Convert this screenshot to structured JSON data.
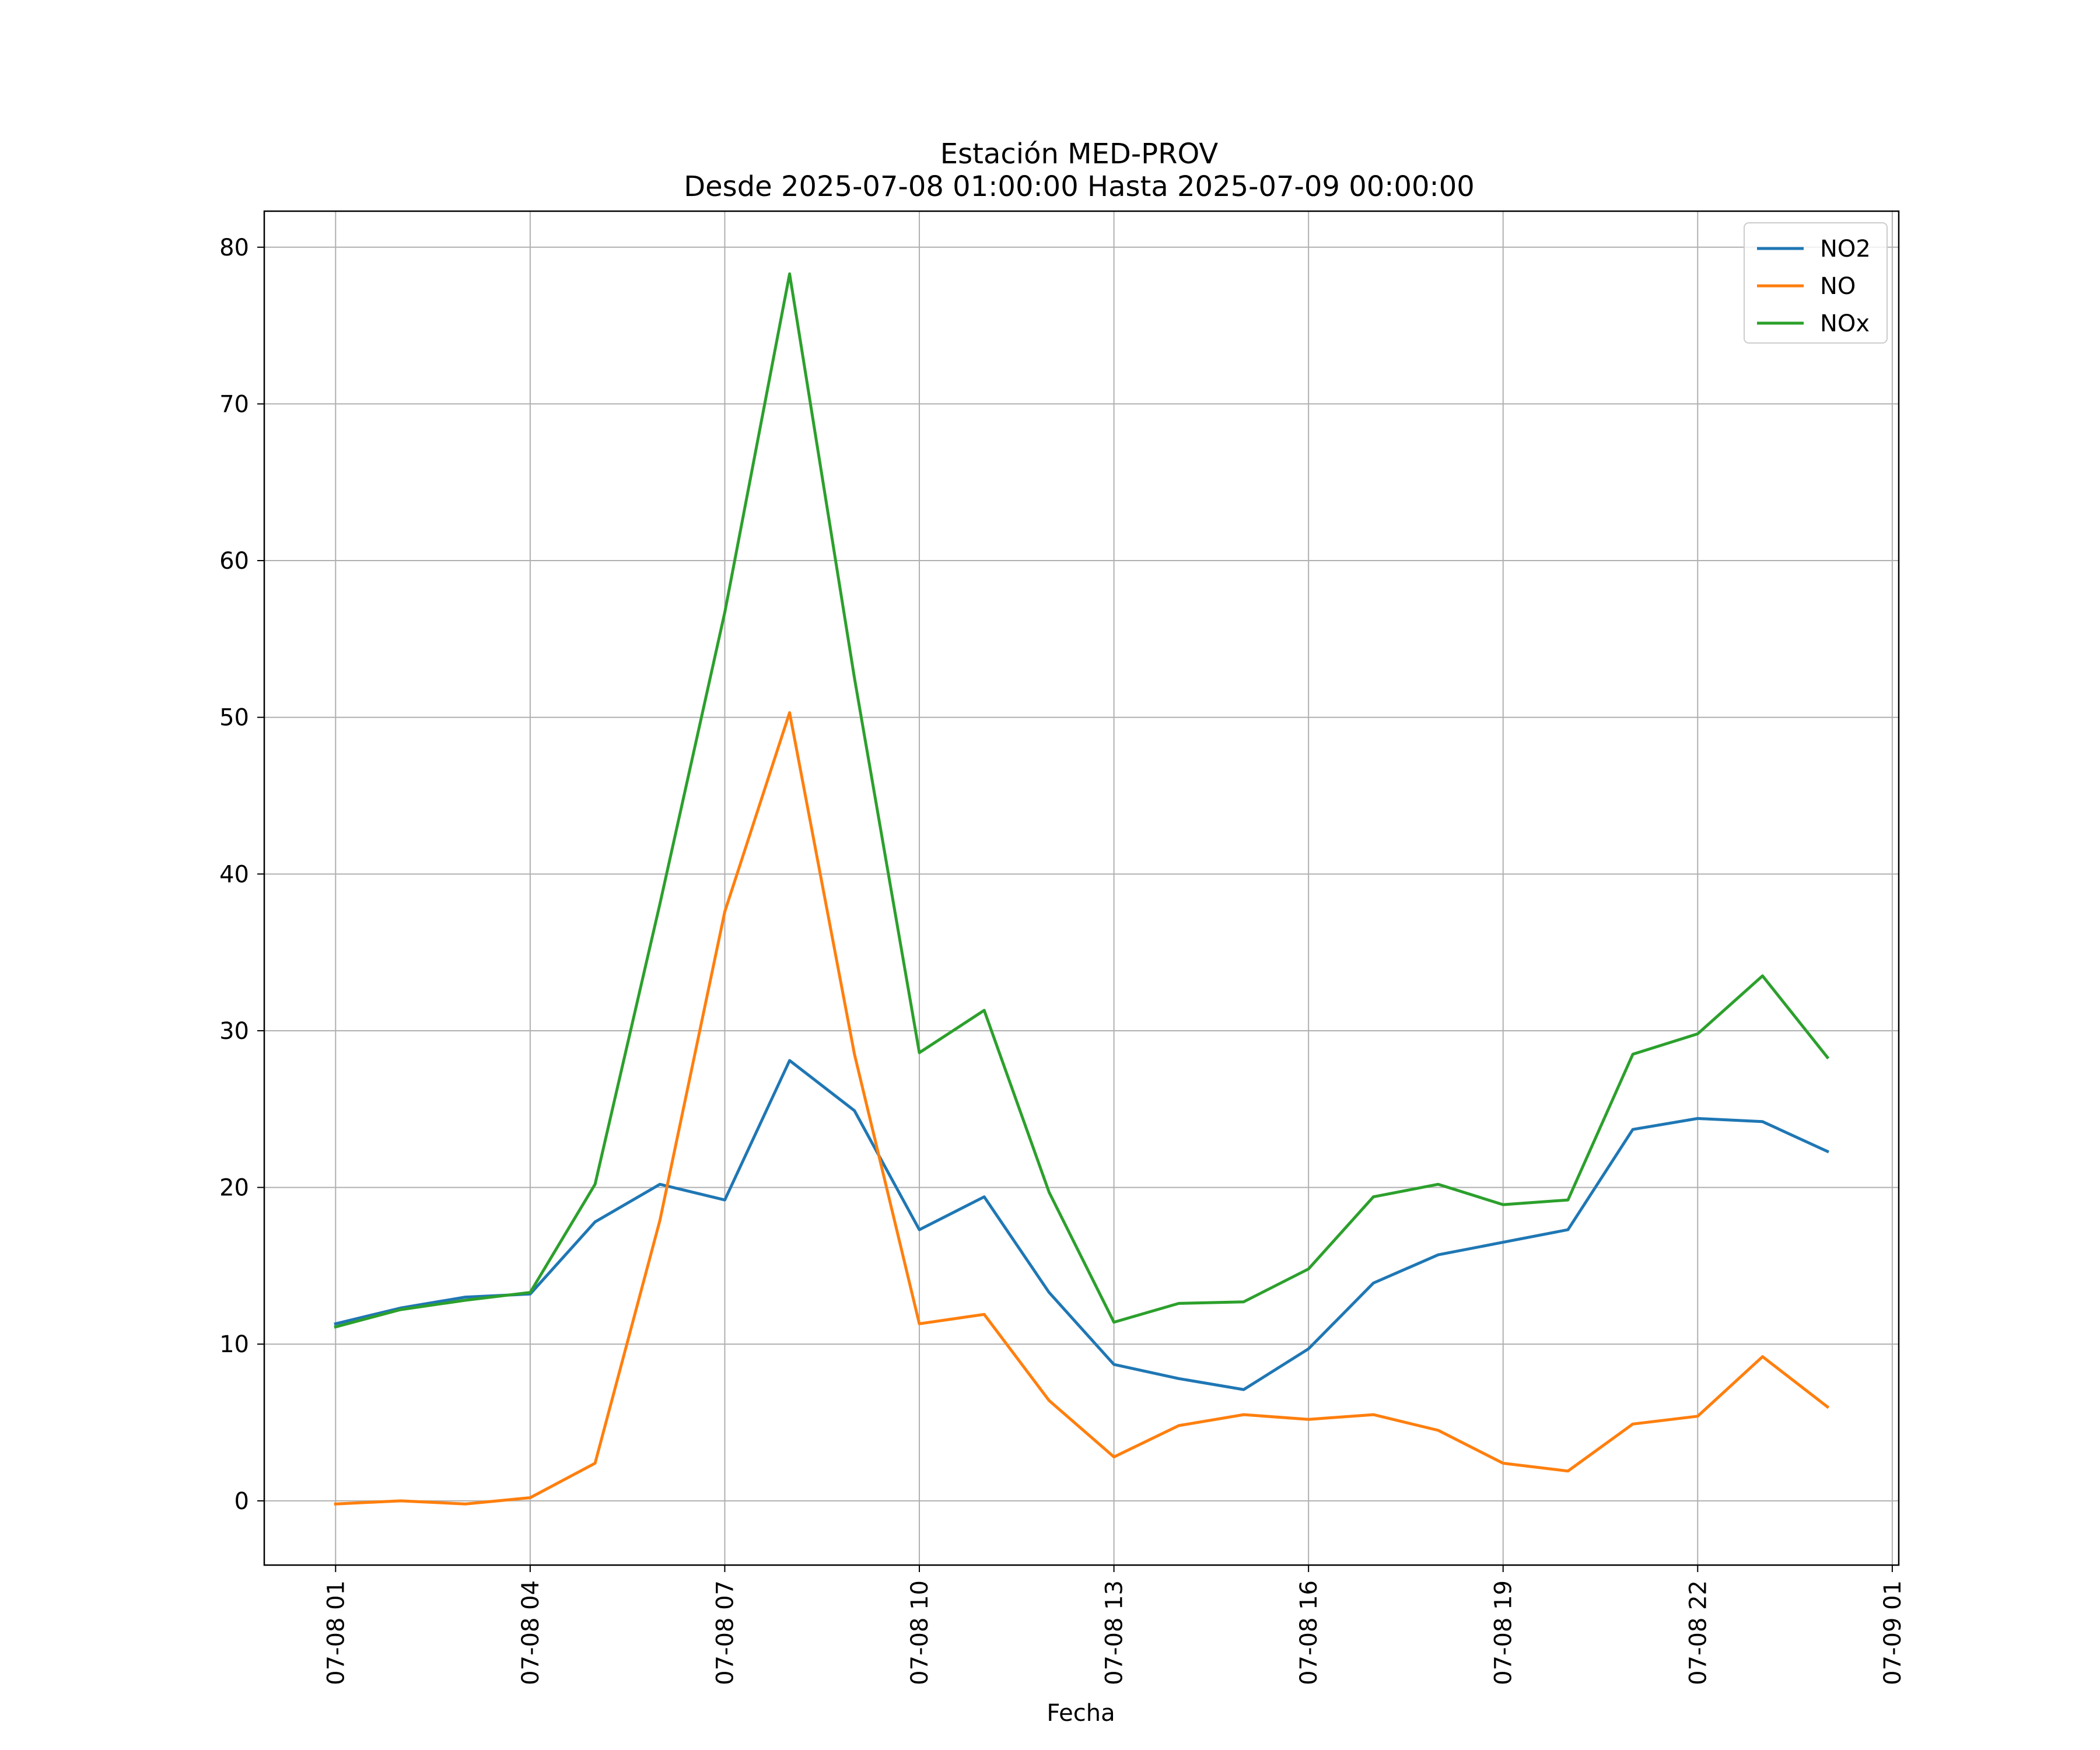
{
  "chart_data": {
    "type": "line",
    "title_line1": "Estación MED-PROV",
    "title_line2": "Desde 2025-07-08 01:00:00 Hasta 2025-07-09 00:00:00",
    "xlabel": "Fecha",
    "ylabel": "",
    "ylim": [
      -4.1,
      82.3
    ],
    "yticks": [
      0,
      10,
      20,
      30,
      40,
      50,
      60,
      70,
      80
    ],
    "xlim_hours": [
      -1.1,
      24.1
    ],
    "xticks": [
      {
        "hour": 0,
        "label": "07-08 01"
      },
      {
        "hour": 3,
        "label": "07-08 04"
      },
      {
        "hour": 6,
        "label": "07-08 07"
      },
      {
        "hour": 9,
        "label": "07-08 10"
      },
      {
        "hour": 12,
        "label": "07-08 13"
      },
      {
        "hour": 15,
        "label": "07-08 16"
      },
      {
        "hour": 18,
        "label": "07-08 19"
      },
      {
        "hour": 21,
        "label": "07-08 22"
      },
      {
        "hour": 24,
        "label": "07-09 01"
      }
    ],
    "grid": true,
    "legend_position": "top-right",
    "series": [
      {
        "name": "NO2",
        "color": "#1f77b4",
        "values": [
          11.3,
          12.3,
          13.0,
          13.2,
          17.8,
          20.2,
          19.2,
          28.1,
          24.9,
          17.3,
          19.4,
          13.3,
          8.7,
          7.8,
          7.1,
          9.7,
          13.9,
          15.7,
          16.5,
          17.3,
          23.7,
          24.4,
          24.2,
          22.3
        ]
      },
      {
        "name": "NO",
        "color": "#ff7f0e",
        "values": [
          -0.2,
          0.0,
          -0.2,
          0.2,
          2.4,
          17.9,
          37.6,
          50.3,
          28.5,
          11.3,
          11.9,
          6.4,
          2.8,
          4.8,
          5.5,
          5.2,
          5.5,
          4.5,
          2.4,
          1.9,
          4.9,
          5.4,
          9.2,
          6.0
        ]
      },
      {
        "name": "NOx",
        "color": "#2ca02c",
        "values": [
          11.1,
          12.2,
          12.8,
          13.3,
          20.2,
          38.1,
          56.7,
          78.3,
          52.5,
          28.6,
          31.3,
          19.7,
          11.4,
          12.6,
          12.7,
          14.8,
          19.4,
          20.2,
          18.9,
          19.2,
          28.5,
          29.8,
          33.5,
          28.3
        ]
      }
    ]
  }
}
